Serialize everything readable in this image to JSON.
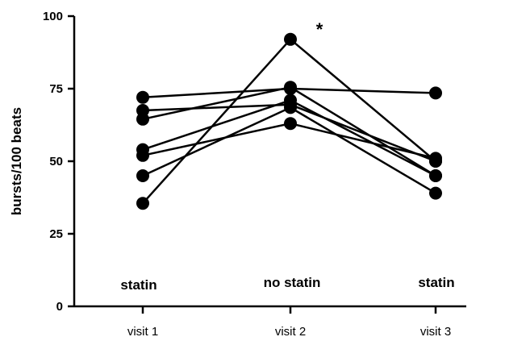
{
  "chart_data": {
    "type": "line",
    "title": "",
    "xlabel": "",
    "ylabel": "bursts/100 beats",
    "ylim": [
      0,
      100
    ],
    "yticks": [
      "0",
      "25",
      "50",
      "75",
      "100"
    ],
    "categories": [
      "visit 1",
      "visit 2",
      "visit 3"
    ],
    "condition_labels": [
      "statin",
      "no statin",
      "statin"
    ],
    "significance_marker": "*",
    "series": [
      {
        "values": [
          72,
          75,
          73.5
        ]
      },
      {
        "values": [
          67.5,
          69.5,
          50
        ]
      },
      {
        "values": [
          64.5,
          75.5,
          45
        ]
      },
      {
        "values": [
          54,
          71,
          45
        ]
      },
      {
        "values": [
          52,
          63,
          51
        ]
      },
      {
        "values": [
          45,
          68.5,
          39
        ]
      },
      {
        "values": [
          35.5,
          92,
          50
        ]
      }
    ],
    "grid": false,
    "legend": "none",
    "marker_color": "#000000",
    "line_color": "#000000"
  }
}
